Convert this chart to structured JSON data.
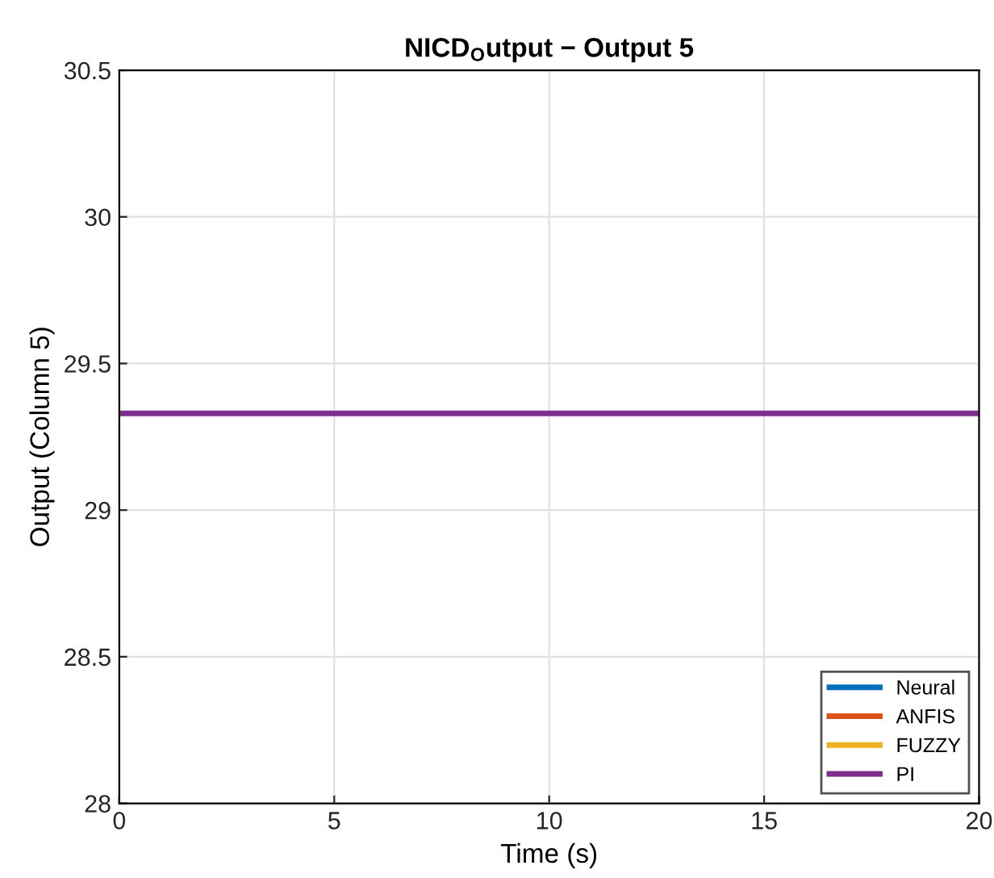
{
  "chart_data": {
    "type": "line",
    "title": "NICD$_{O}$utput − Output 5",
    "xlabel": "Time (s)",
    "ylabel": "Output (Column 5)",
    "x": [
      0,
      20
    ],
    "series": [
      {
        "name": "Neural",
        "color": "#0072bd",
        "values": [
          null,
          null
        ]
      },
      {
        "name": "ANFIS",
        "color": "#d95319",
        "values": [
          null,
          null
        ]
      },
      {
        "name": "FUZZY",
        "color": "#edb120",
        "values": [
          null,
          null
        ]
      },
      {
        "name": "PI",
        "color": "#7e2f8e",
        "values": [
          29.33,
          29.33
        ]
      }
    ],
    "xlim": [
      0,
      20
    ],
    "xticks": [
      0,
      5,
      10,
      15,
      20
    ],
    "ylim": [
      28,
      30.5
    ],
    "yticks": [
      28,
      28.5,
      29,
      29.5,
      30,
      30.5
    ],
    "grid": true,
    "legend": "bottom right",
    "line_style": "solid",
    "marker": "none"
  }
}
